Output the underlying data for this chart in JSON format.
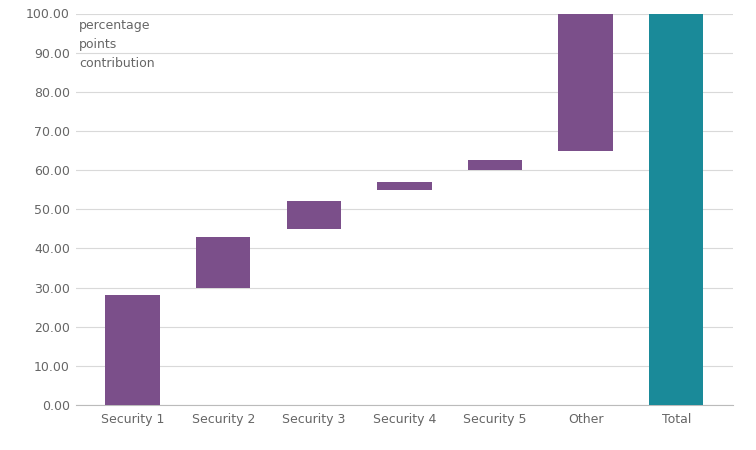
{
  "categories": [
    "Security 1",
    "Security 2",
    "Security 3",
    "Security 4",
    "Security 5",
    "Other",
    "Total"
  ],
  "bar_bottoms": [
    0,
    30,
    45,
    55,
    60,
    65,
    0
  ],
  "bar_tops": [
    28,
    43,
    52,
    57,
    62.5,
    100,
    100
  ],
  "bar_colors": [
    "#7b4f8a",
    "#7b4f8a",
    "#7b4f8a",
    "#7b4f8a",
    "#7b4f8a",
    "#7b4f8a",
    "#1a8a99"
  ],
  "ylabel": "percentage\npoints\ncontribution",
  "ylim": [
    0,
    100
  ],
  "yticks": [
    0,
    10,
    20,
    30,
    40,
    50,
    60,
    70,
    80,
    90,
    100
  ],
  "ytick_labels": [
    "0.00",
    "10.00",
    "20.00",
    "30.00",
    "40.00",
    "50.00",
    "60.00",
    "70.00",
    "80.00",
    "90.00",
    "100.00"
  ],
  "background_color": "#ffffff",
  "grid_color": "#d9d9d9",
  "bar_width": 0.6,
  "tick_fontsize": 9,
  "label_fontsize": 9,
  "label_color": "#666666",
  "tick_color": "#666666"
}
